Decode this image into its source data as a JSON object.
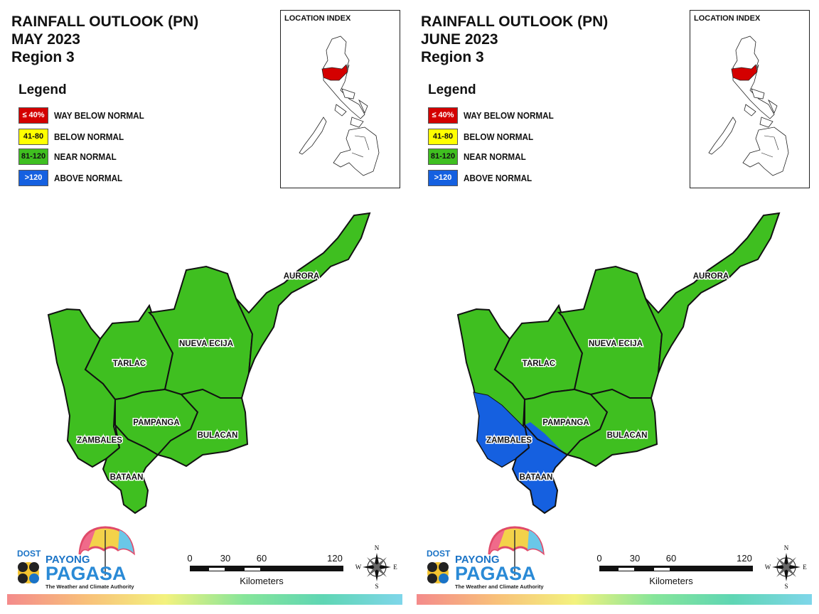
{
  "panels": [
    {
      "title_line1": "RAINFALL OUTLOOK (PN)",
      "title_line2": "MAY 2023",
      "title_line3": "Region 3",
      "legend": {
        "title": "Legend",
        "items": [
          {
            "swatch": "≤ 40%",
            "label": "WAY BELOW NORMAL",
            "color": "#d40000",
            "text_color": "#ffffff"
          },
          {
            "swatch": "41-80",
            "label": "BELOW NORMAL",
            "color": "#ffff00",
            "text_color": "#111111"
          },
          {
            "swatch": "81-120",
            "label": "NEAR NORMAL",
            "color": "#3fbf20",
            "text_color": "#111111"
          },
          {
            "swatch": ">120",
            "label": "ABOVE NORMAL",
            "color": "#1560e0",
            "text_color": "#ffffff"
          }
        ]
      },
      "location_index": "LOCATION INDEX",
      "provinces": {
        "aurora": "AURORA",
        "nueva_ecija": "NUEVA ECIJA",
        "tarlac": "TARLAC",
        "pampanga": "PAMPANGA",
        "bulacan": "BULACAN",
        "zambales": "ZAMBALES",
        "bataan": "BATAAN"
      },
      "province_category": {
        "aurora": "NEAR NORMAL",
        "nueva_ecija": "NEAR NORMAL",
        "tarlac": "NEAR NORMAL",
        "pampanga": "NEAR NORMAL",
        "bulacan": "NEAR NORMAL",
        "zambales": "NEAR NORMAL",
        "bataan": "NEAR NORMAL"
      },
      "scale": {
        "ticks": [
          "0",
          "30",
          "60",
          "120"
        ],
        "unit": "Kilometers"
      },
      "compass": {
        "n": "N",
        "s": "S",
        "e": "E",
        "w": "W"
      },
      "logo": {
        "dost": "DOST",
        "payong": "PAYONG",
        "pagasa": "PAGASA",
        "tagline": "The Weather and Climate Authority"
      }
    },
    {
      "title_line1": "RAINFALL OUTLOOK (PN)",
      "title_line2": "JUNE 2023",
      "title_line3": "Region 3",
      "legend": {
        "title": "Legend",
        "items": [
          {
            "swatch": "≤ 40%",
            "label": "WAY BELOW NORMAL",
            "color": "#d40000",
            "text_color": "#ffffff"
          },
          {
            "swatch": "41-80",
            "label": "BELOW NORMAL",
            "color": "#ffff00",
            "text_color": "#111111"
          },
          {
            "swatch": "81-120",
            "label": "NEAR NORMAL",
            "color": "#3fbf20",
            "text_color": "#111111"
          },
          {
            "swatch": ">120",
            "label": "ABOVE NORMAL",
            "color": "#1560e0",
            "text_color": "#ffffff"
          }
        ]
      },
      "location_index": "LOCATION INDEX",
      "provinces": {
        "aurora": "AURORA",
        "nueva_ecija": "NUEVA ECIJA",
        "tarlac": "TARLAC",
        "pampanga": "PAMPANGA",
        "bulacan": "BULACAN",
        "zambales": "ZAMBALES",
        "bataan": "BATAAN"
      },
      "province_category": {
        "aurora": "NEAR NORMAL",
        "nueva_ecija": "NEAR NORMAL",
        "tarlac": "NEAR NORMAL",
        "pampanga": "NEAR NORMAL",
        "bulacan": "NEAR NORMAL",
        "zambales": "ABOVE NORMAL",
        "bataan": "ABOVE NORMAL"
      },
      "scale": {
        "ticks": [
          "0",
          "30",
          "60",
          "120"
        ],
        "unit": "Kilometers"
      },
      "compass": {
        "n": "N",
        "s": "S",
        "e": "E",
        "w": "W"
      },
      "logo": {
        "dost": "DOST",
        "payong": "PAYONG",
        "pagasa": "PAGASA",
        "tagline": "The Weather and Climate Authority"
      }
    }
  ],
  "colors": {
    "near_normal": "#3fbf20",
    "above_normal": "#1560e0",
    "highlight_region": "#d40000",
    "border": "#111111"
  }
}
